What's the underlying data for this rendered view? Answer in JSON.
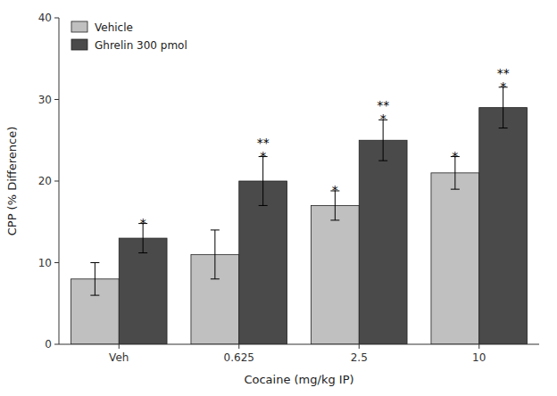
{
  "chart_data": {
    "type": "bar",
    "categories": [
      "Veh",
      "0.625",
      "2.5",
      "10"
    ],
    "series": [
      {
        "name": "Vehicle",
        "color": "#c0c0c0",
        "values": [
          8.0,
          11.0,
          17.0,
          21.0
        ],
        "errors": [
          2.0,
          3.0,
          1.8,
          2.0
        ]
      },
      {
        "name": "Ghrelin 300 pmol",
        "color": "#4a4a4a",
        "values": [
          13.0,
          20.0,
          25.0,
          29.0
        ],
        "errors": [
          1.8,
          3.0,
          2.5,
          2.5
        ]
      }
    ],
    "annotations": [
      {
        "text": "*",
        "series": "Vehicle",
        "category": "2.5"
      },
      {
        "text": "*",
        "series": "Vehicle",
        "category": "10"
      },
      {
        "text": "*",
        "series": "Ghrelin 300 pmol",
        "category": "Veh"
      },
      {
        "text": "*",
        "series": "Ghrelin 300 pmol",
        "category": "0.625"
      },
      {
        "text": "**",
        "series": "Ghrelin 300 pmol",
        "category": "0.625"
      },
      {
        "text": "*",
        "series": "Ghrelin 300 pmol",
        "category": "2.5"
      },
      {
        "text": "**",
        "series": "Ghrelin 300 pmol",
        "category": "2.5"
      },
      {
        "text": "*",
        "series": "Ghrelin 300 pmol",
        "category": "10"
      },
      {
        "text": "**",
        "series": "Ghrelin 300 pmol",
        "category": "10"
      }
    ],
    "xlabel": "Cocaine (mg/kg IP)",
    "ylabel": "CPP (% Difference)",
    "ylim": [
      0,
      40
    ],
    "yticks": [
      0,
      10,
      20,
      30,
      40
    ],
    "grid": false,
    "legend": "upper left"
  }
}
